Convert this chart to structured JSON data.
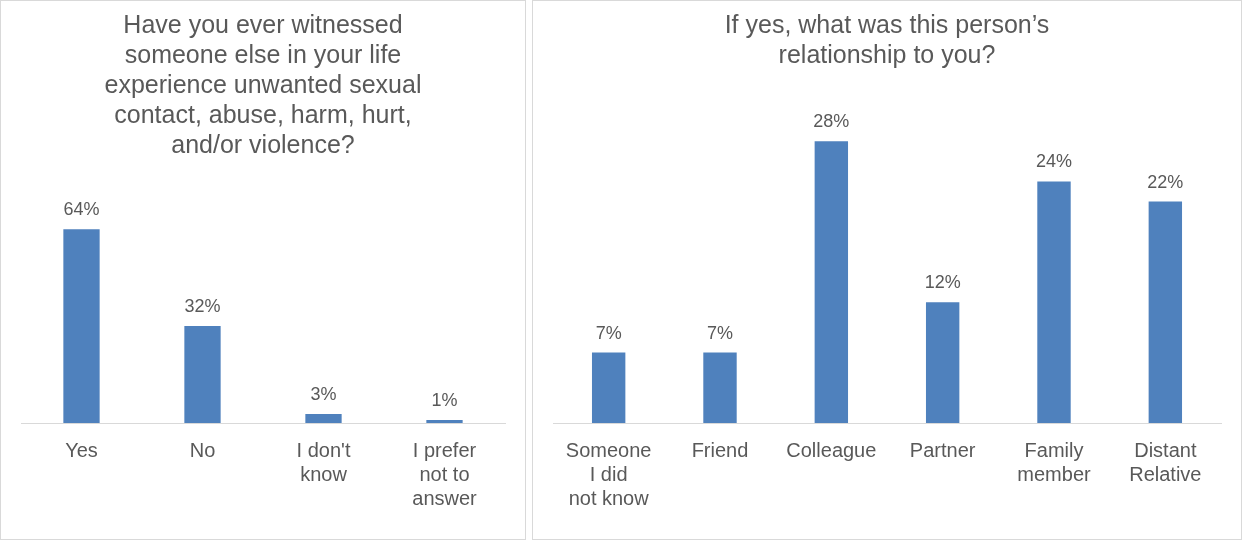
{
  "chart_data": [
    {
      "type": "bar",
      "title": "Have you ever witnessed someone else in your life experience unwanted sexual contact, abuse, harm, hurt, and/or violence?",
      "categories": [
        "Yes",
        "No",
        "I don't know",
        "I prefer not to answer"
      ],
      "values": [
        64,
        32,
        3,
        1
      ],
      "color": "#4f81bd",
      "value_labels": [
        "64%",
        "32%",
        "3%",
        "1%"
      ],
      "grid": false,
      "legend": false
    },
    {
      "type": "bar",
      "title": "If yes, what was this person’s relationship to you?",
      "categories": [
        "Someone I did not know",
        "Friend",
        "Colleague",
        "Partner",
        "Family member",
        "Distant Relative"
      ],
      "values": [
        7,
        7,
        28,
        12,
        24,
        22
      ],
      "color": "#4f81bd",
      "value_labels": [
        "7%",
        "7%",
        "28%",
        "12%",
        "24%",
        "22%"
      ],
      "grid": false,
      "legend": false
    }
  ]
}
